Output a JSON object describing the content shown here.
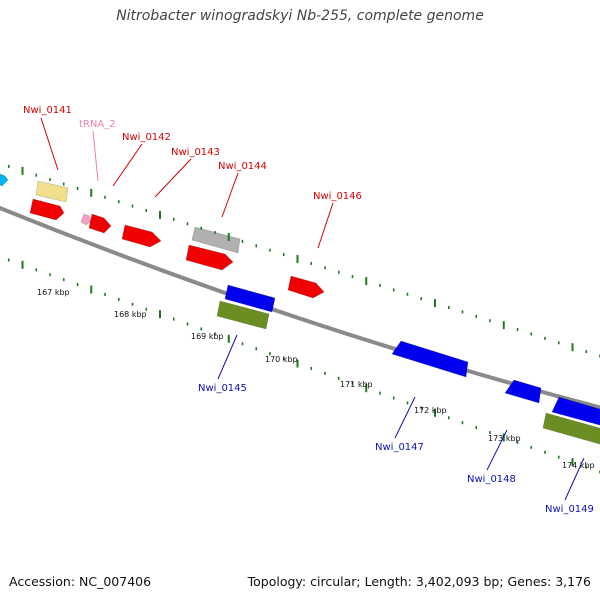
{
  "title": "Nitrobacter winogradskyi Nb-255, complete genome",
  "footer": {
    "accession": "Accession: NC_007406",
    "summary": "Topology: circular; Length: 3,402,093 bp; Genes: 3,176"
  },
  "colors": {
    "backbone": "#8a8a8a",
    "tick": "#1f7a1f",
    "top_label": "#d40000",
    "trna_label": "#f07fa8",
    "bottom_label": "#1010b0",
    "red": "#f00000",
    "blue": "#0000ee",
    "olive": "#6b8e23",
    "gray": "#b0b0b0",
    "khaki": "#f0e08c",
    "pink": "#f4a0c8",
    "cyan": "#00b4f0"
  },
  "kbp_labels": [
    "167 kbp",
    "168 kbp",
    "169 kbp",
    "170 kbp",
    "171 kbp",
    "172 kbp",
    "173 kbp",
    "174 kbp"
  ],
  "top_genes": [
    {
      "label": "Nwi_0141",
      "color": "top_label"
    },
    {
      "label": "tRNA_2",
      "color": "trna_label"
    },
    {
      "label": "Nwi_0142",
      "color": "top_label"
    },
    {
      "label": "Nwi_0143",
      "color": "top_label"
    },
    {
      "label": "Nwi_0144",
      "color": "top_label"
    },
    {
      "label": "Nwi_0146",
      "color": "top_label"
    }
  ],
  "bottom_genes": [
    {
      "label": "Nwi_0145"
    },
    {
      "label": "Nwi_0147"
    },
    {
      "label": "Nwi_0148"
    },
    {
      "label": "Nwi_0149"
    }
  ]
}
